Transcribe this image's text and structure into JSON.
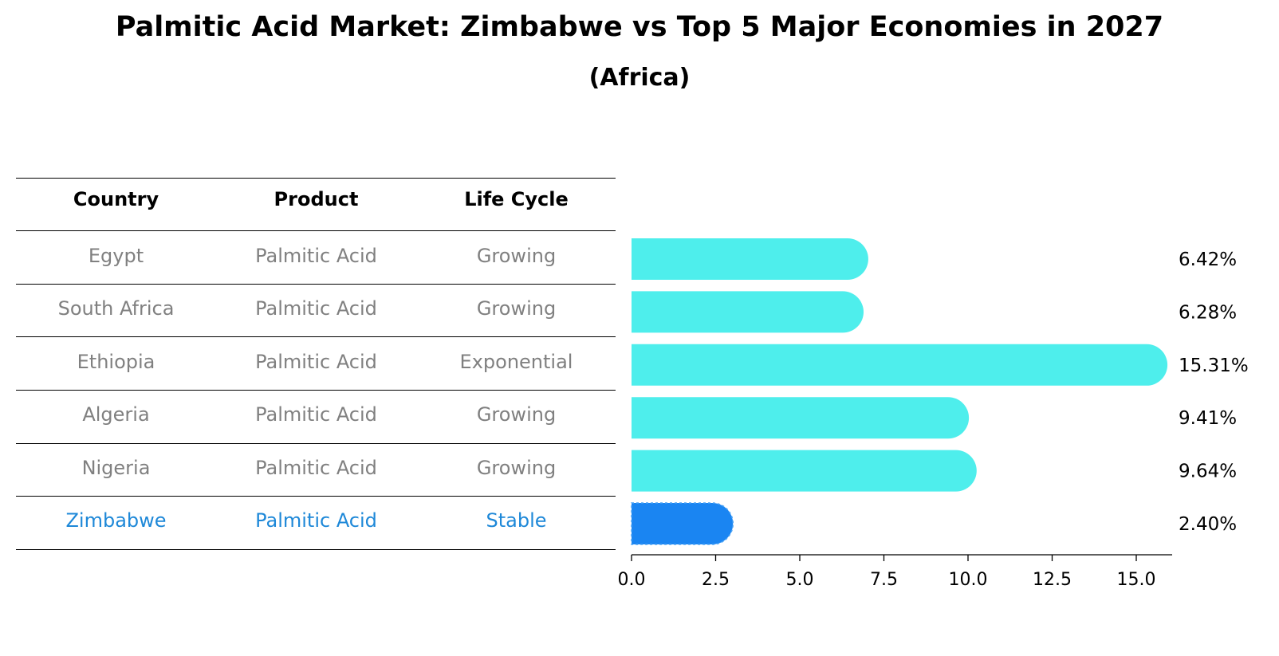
{
  "header": {
    "title": "Palmitic Acid Market: Zimbabwe vs Top 5 Major Economies in 2027",
    "subtitle": "(Africa)"
  },
  "table": {
    "columns": [
      "Country",
      "Product",
      "Life Cycle"
    ],
    "rows": [
      {
        "country": "Egypt",
        "product": "Palmitic Acid",
        "life_cycle": "Growing"
      },
      {
        "country": "South Africa",
        "product": "Palmitic Acid",
        "life_cycle": "Growing"
      },
      {
        "country": "Ethiopia",
        "product": "Palmitic Acid",
        "life_cycle": "Exponential"
      },
      {
        "country": "Algeria",
        "product": "Palmitic Acid",
        "life_cycle": "Growing"
      },
      {
        "country": "Nigeria",
        "product": "Palmitic Acid",
        "life_cycle": "Growing"
      },
      {
        "country": "Zimbabwe",
        "product": "Palmitic Acid",
        "life_cycle": "Stable"
      }
    ]
  },
  "colors": {
    "bar": "#4eeeec",
    "highlight_bar": "#1a85f2",
    "highlight_text": "#1e88d8",
    "row_text": "#808080"
  },
  "chart_data": {
    "type": "bar",
    "orientation": "horizontal",
    "title": "Palmitic Acid Market: Zimbabwe vs Top 5 Major Economies in 2027",
    "subtitle": "(Africa)",
    "categories": [
      "Egypt",
      "South Africa",
      "Ethiopia",
      "Algeria",
      "Nigeria",
      "Zimbabwe"
    ],
    "values": [
      6.42,
      6.28,
      15.31,
      9.41,
      9.64,
      2.4
    ],
    "labels": [
      "6.42%",
      "6.28%",
      "15.31%",
      "9.41%",
      "9.64%",
      "2.40%"
    ],
    "highlight": "Zimbabwe",
    "xlim": [
      0,
      16
    ],
    "xticks": [
      0.0,
      2.5,
      5.0,
      7.5,
      10.0,
      12.5,
      15.0
    ],
    "xtick_labels": [
      "0.0",
      "2.5",
      "5.0",
      "7.5",
      "10.0",
      "12.5",
      "15.0"
    ]
  }
}
